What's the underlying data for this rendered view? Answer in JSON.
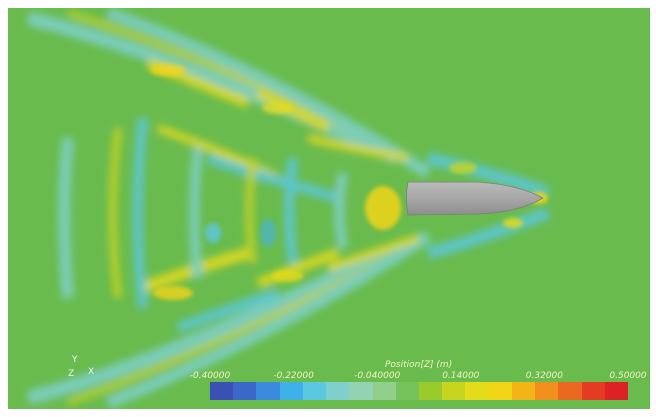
{
  "viewport": {
    "background": "#69bb4e",
    "subject": "hull",
    "hull_color": "#a6a7a6"
  },
  "legend": {
    "title": "Position[Z] (m)",
    "ticks": [
      "-0.40000",
      "-0.22000",
      "-0.040000",
      "0.14000",
      "0.32000",
      "0.50000"
    ],
    "range": [
      -0.4,
      0.5
    ],
    "text_color": "#f3f4c5",
    "colors": [
      "#3a50b4",
      "#3a68c8",
      "#3a8add",
      "#3fb1e8",
      "#5cc7e0",
      "#7fd0cc",
      "#93d3b3",
      "#92cf8c",
      "#75c35a",
      "#99cc2b",
      "#c7d420",
      "#e4dc1a",
      "#f2d516",
      "#f4b417",
      "#f08f1c",
      "#eb6820",
      "#e43b23",
      "#dd2125"
    ]
  },
  "axes_triad": {
    "labels": [
      "Y",
      "Z",
      "X"
    ]
  }
}
